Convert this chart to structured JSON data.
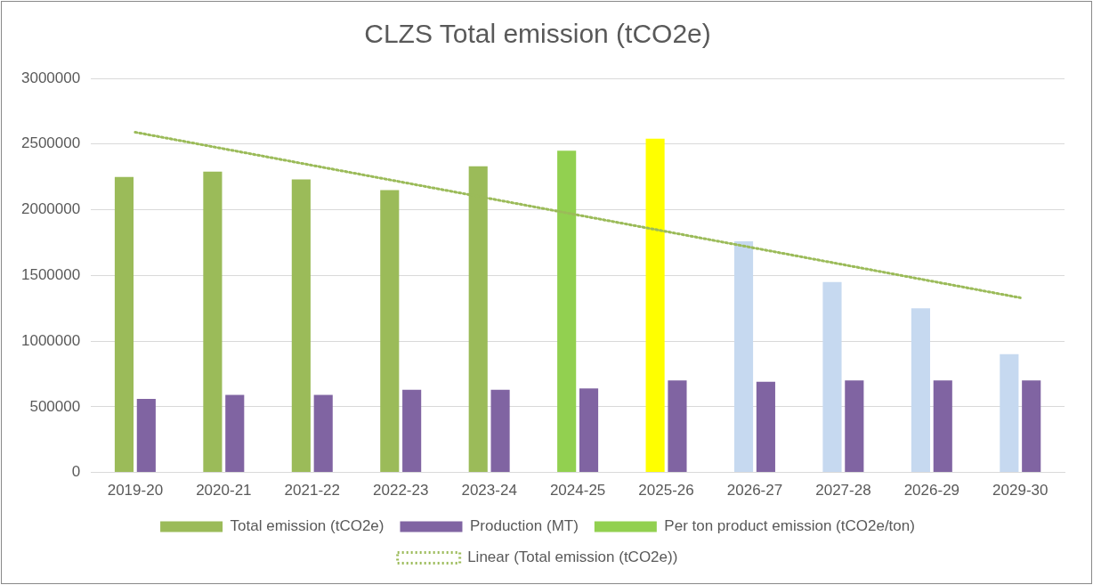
{
  "chart_data": {
    "type": "bar",
    "title": "CLZS Total emission (tCO2e)",
    "categories": [
      "2019-20",
      "2020-21",
      "2021-22",
      "2022-23",
      "2023-24",
      "2024-25",
      "2025-26",
      "2026-27",
      "2027-28",
      "2026-29",
      "2029-30"
    ],
    "series": [
      {
        "name": "Total emission (tCO2e)",
        "color": "#9bbb59",
        "colors": [
          "#9bbb59",
          "#9bbb59",
          "#9bbb59",
          "#9bbb59",
          "#9bbb59",
          "#92d050",
          "#ffff00",
          "#c6d9f0",
          "#c6d9f0",
          "#c6d9f0",
          "#c6d9f0"
        ],
        "values": [
          2250000,
          2290000,
          2230000,
          2150000,
          2330000,
          2450000,
          2540000,
          1760000,
          1450000,
          1250000,
          900000
        ]
      },
      {
        "name": "Production (MT)",
        "color": "#8064a2",
        "values": [
          560000,
          590000,
          590000,
          630000,
          630000,
          640000,
          700000,
          690000,
          700000,
          700000,
          700000
        ]
      },
      {
        "name": "Per ton product emission (tCO2e/ton)",
        "color": "#92d050",
        "values": [
          null,
          null,
          null,
          null,
          null,
          null,
          null,
          null,
          null,
          null,
          null
        ]
      },
      {
        "name": "Linear (Total emission (tCO2e))",
        "type": "line",
        "color": "#9bbb59",
        "line_style": "dotted",
        "marker": "none",
        "x": [
          "2019-20",
          "2029-30"
        ],
        "values": [
          2590000,
          1330000
        ]
      }
    ],
    "ylim": [
      0,
      3000000
    ],
    "yticks": [
      0,
      500000,
      1000000,
      1500000,
      2000000,
      2500000,
      3000000
    ],
    "grid": "y",
    "legend": "bottom"
  }
}
